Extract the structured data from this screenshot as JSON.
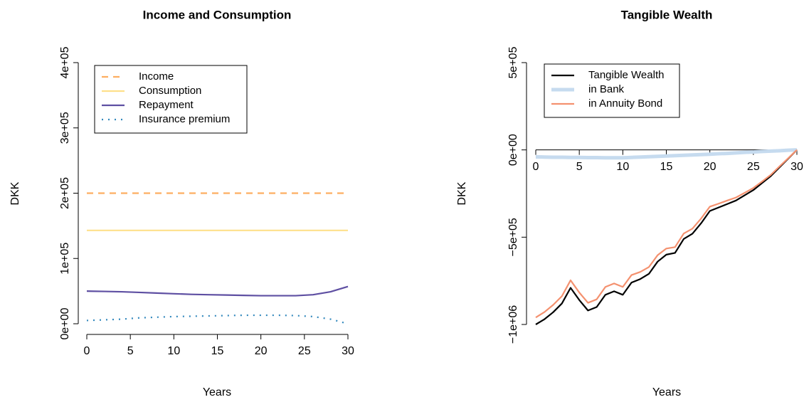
{
  "chart_data": [
    {
      "type": "line",
      "title": "Income and Consumption",
      "xlabel": "Years",
      "ylabel": "DKK",
      "x": [
        0,
        2,
        4,
        6,
        8,
        10,
        12,
        14,
        16,
        18,
        20,
        22,
        24,
        26,
        28,
        30
      ],
      "xlim": [
        0,
        30
      ],
      "xticks": [
        0,
        5,
        10,
        15,
        20,
        25,
        30
      ],
      "ylim": [
        0,
        400000
      ],
      "yticks": [
        {
          "value": 0,
          "label": "0e+00"
        },
        {
          "value": 100000,
          "label": "1e+05"
        },
        {
          "value": 200000,
          "label": "2e+05"
        },
        {
          "value": 300000,
          "label": "3e+05"
        },
        {
          "value": 400000,
          "label": "4e+05"
        }
      ],
      "legend": "top-left",
      "series": [
        {
          "name": "Income",
          "color": "#FDAE61",
          "linestyle": "dashed",
          "linewidth": 2.2,
          "values": [
            200000,
            200000,
            200000,
            200000,
            200000,
            200000,
            200000,
            200000,
            200000,
            200000,
            200000,
            200000,
            200000,
            200000,
            200000,
            200000
          ]
        },
        {
          "name": "Consumption",
          "color": "#FEE08B",
          "linestyle": "solid",
          "linewidth": 2.2,
          "values": [
            143000,
            143000,
            143000,
            143000,
            143000,
            143000,
            143000,
            143000,
            143000,
            143000,
            143000,
            143000,
            143000,
            143000,
            143000,
            143000
          ]
        },
        {
          "name": "Repayment",
          "color": "#5E4FA2",
          "linestyle": "solid",
          "linewidth": 2.2,
          "values": [
            50000,
            49500,
            49000,
            48000,
            47000,
            46000,
            45000,
            44500,
            44000,
            43500,
            43000,
            43000,
            43000,
            44500,
            49000,
            57000
          ]
        },
        {
          "name": "Insurance premium",
          "color": "#3288BD",
          "linestyle": "dotted",
          "linewidth": 2.2,
          "values": [
            5000,
            6000,
            7000,
            9000,
            10000,
            11000,
            11500,
            12000,
            12500,
            13000,
            13000,
            13000,
            12500,
            11000,
            7000,
            0
          ]
        }
      ]
    },
    {
      "type": "line",
      "title": "Tangible Wealth",
      "xlabel": "Years",
      "ylabel": "DKK",
      "x": [
        0,
        1,
        2,
        3,
        4,
        5,
        6,
        7,
        8,
        9,
        10,
        11,
        12,
        13,
        14,
        15,
        16,
        17,
        18,
        19,
        20,
        21,
        22,
        23,
        24,
        25,
        26,
        27,
        28,
        29,
        30
      ],
      "xlim": [
        0,
        30
      ],
      "xticks": [
        0,
        5,
        10,
        15,
        20,
        25,
        30
      ],
      "ylim": [
        -1000000,
        500000
      ],
      "yticks": [
        {
          "value": -1000000,
          "label": "−1e+06"
        },
        {
          "value": -500000,
          "label": "−5e+05"
        },
        {
          "value": 0,
          "label": "0e+00"
        },
        {
          "value": 500000,
          "label": "5e+05"
        }
      ],
      "legend": "top-left",
      "series": [
        {
          "name": "Tangible Wealth",
          "color": "#000000",
          "linestyle": "solid",
          "linewidth": 2.2,
          "values": [
            -1000000,
            -970000,
            -930000,
            -880000,
            -790000,
            -860000,
            -920000,
            -900000,
            -830000,
            -810000,
            -830000,
            -760000,
            -740000,
            -710000,
            -640000,
            -600000,
            -590000,
            -510000,
            -480000,
            -420000,
            -350000,
            -330000,
            -310000,
            -290000,
            -260000,
            -230000,
            -190000,
            -150000,
            -100000,
            -50000,
            0
          ]
        },
        {
          "name": "in Bank",
          "color": "#C6DBEF",
          "linestyle": "solid",
          "linewidth": 5,
          "values": [
            -40000,
            -41000,
            -42000,
            -42000,
            -43000,
            -43000,
            -44000,
            -44000,
            -45000,
            -45000,
            -45000,
            -43000,
            -41000,
            -39000,
            -37000,
            -35000,
            -33000,
            -31000,
            -29000,
            -27000,
            -25000,
            -22000,
            -20000,
            -17000,
            -14000,
            -12000,
            -9000,
            -7000,
            -5000,
            -2000,
            0
          ]
        },
        {
          "name": "in Annuity Bond",
          "color": "#F4916F",
          "linestyle": "solid",
          "linewidth": 2.2,
          "values": [
            -960000,
            -929000,
            -888000,
            -838000,
            -747000,
            -817000,
            -876000,
            -856000,
            -785000,
            -765000,
            -785000,
            -717000,
            -699000,
            -671000,
            -603000,
            -565000,
            -557000,
            -479000,
            -451000,
            -393000,
            -325000,
            -308000,
            -290000,
            -273000,
            -246000,
            -218000,
            -181000,
            -143000,
            -95000,
            -48000,
            0
          ]
        }
      ]
    }
  ]
}
